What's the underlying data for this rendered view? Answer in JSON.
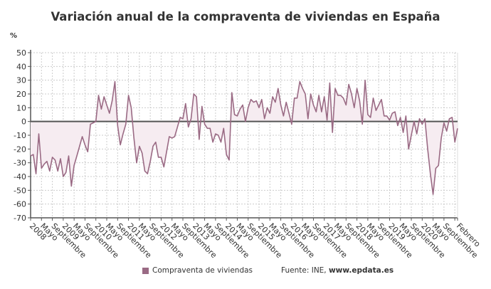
{
  "chart_data": {
    "type": "line",
    "title": "Variación anual de la compraventa de viviendas en España",
    "ylabel": "%",
    "ylim": [
      -70,
      50
    ],
    "yticks": [
      50,
      40,
      30,
      20,
      10,
      0,
      -10,
      -20,
      -30,
      -40,
      -50,
      -60,
      -70
    ],
    "grid": true,
    "legend_placement": "bottom",
    "colors": {
      "line": "#9a6a84",
      "fill": "#f6ecf1",
      "zero_line": "#555555",
      "grid": "#cccccc"
    },
    "x": [
      "2008-01",
      "2008-02",
      "2008-03",
      "2008-04",
      "2008-05",
      "2008-06",
      "2008-07",
      "2008-08",
      "2008-09",
      "2008-10",
      "2008-11",
      "2008-12",
      "2009-01",
      "2009-02",
      "2009-03",
      "2009-04",
      "2009-05",
      "2009-06",
      "2009-07",
      "2009-08",
      "2009-09",
      "2009-10",
      "2009-11",
      "2009-12",
      "2010-01",
      "2010-02",
      "2010-03",
      "2010-04",
      "2010-05",
      "2010-06",
      "2010-07",
      "2010-08",
      "2010-09",
      "2010-10",
      "2010-11",
      "2010-12",
      "2011-01",
      "2011-02",
      "2011-03",
      "2011-04",
      "2011-05",
      "2011-06",
      "2011-07",
      "2011-08",
      "2011-09",
      "2011-10",
      "2011-11",
      "2011-12",
      "2012-01",
      "2012-02",
      "2012-03",
      "2012-04",
      "2012-05",
      "2012-06",
      "2012-07",
      "2012-08",
      "2012-09",
      "2012-10",
      "2012-11",
      "2012-12",
      "2013-01",
      "2013-02",
      "2013-03",
      "2013-04",
      "2013-05",
      "2013-06",
      "2013-07",
      "2013-08",
      "2013-09",
      "2013-10",
      "2013-11",
      "2013-12",
      "2014-01",
      "2014-02",
      "2014-03",
      "2014-04",
      "2014-05",
      "2014-06",
      "2014-07",
      "2014-08",
      "2014-09",
      "2014-10",
      "2014-11",
      "2014-12",
      "2015-01",
      "2015-02",
      "2015-03",
      "2015-04",
      "2015-05",
      "2015-06",
      "2015-07",
      "2015-08",
      "2015-09",
      "2015-10",
      "2015-11",
      "2015-12",
      "2016-01",
      "2016-02",
      "2016-03",
      "2016-04",
      "2016-05",
      "2016-06",
      "2016-07",
      "2016-08",
      "2016-09",
      "2016-10",
      "2016-11",
      "2016-12",
      "2017-01",
      "2017-02",
      "2017-03",
      "2017-04",
      "2017-05",
      "2017-06",
      "2017-07",
      "2017-08",
      "2017-09",
      "2017-10",
      "2017-11",
      "2017-12",
      "2018-01",
      "2018-02",
      "2018-03",
      "2018-04",
      "2018-05",
      "2018-06",
      "2018-07",
      "2018-08",
      "2018-09",
      "2018-10",
      "2018-11",
      "2018-12",
      "2019-01",
      "2019-02",
      "2019-03",
      "2019-04",
      "2019-05",
      "2019-06",
      "2019-07",
      "2019-08",
      "2019-09",
      "2019-10",
      "2019-11",
      "2019-12",
      "2020-01",
      "2020-02",
      "2020-03",
      "2020-04",
      "2020-05",
      "2020-06",
      "2020-07",
      "2020-08",
      "2020-09",
      "2020-10",
      "2020-11",
      "2020-12",
      "2021-01",
      "2021-02"
    ],
    "series": [
      {
        "name": "Compraventa de viviendas",
        "values": [
          -25,
          -24,
          -38,
          -9,
          -34,
          -31,
          -29,
          -36,
          -26,
          -28,
          -36,
          -27,
          -40,
          -37,
          -25,
          -47,
          -32,
          -25,
          -18,
          -11,
          -17,
          -22,
          -2,
          -1,
          0,
          19,
          9,
          18,
          12,
          6,
          15,
          29,
          -3,
          -17,
          -9,
          -2,
          19,
          10,
          -12,
          -30,
          -18,
          -23,
          -36,
          -38,
          -29,
          -18,
          -15,
          -26,
          -26,
          -33,
          -22,
          -11,
          -12,
          -11,
          -4,
          3,
          2,
          13,
          -4,
          2,
          20,
          18,
          -13,
          11,
          -2,
          -5,
          -5,
          -15,
          -9,
          -10,
          -15,
          -5,
          -24,
          -28,
          21,
          5,
          4,
          9,
          12,
          0,
          10,
          16,
          14,
          15,
          10,
          16,
          2,
          10,
          6,
          18,
          14,
          24,
          12,
          4,
          14,
          6,
          -2,
          17,
          17,
          29,
          24,
          20,
          2,
          20,
          12,
          7,
          19,
          7,
          18,
          1,
          28,
          -8,
          24,
          19,
          19,
          17,
          12,
          27,
          20,
          10,
          24,
          15,
          -2,
          30,
          5,
          3,
          17,
          8,
          12,
          16,
          4,
          4,
          1,
          6,
          7,
          -3,
          3,
          -8,
          4,
          -20,
          -10,
          0,
          -9,
          2,
          -2,
          2,
          -20,
          -38,
          -53,
          -34,
          -32,
          -12,
          -1,
          -7,
          2,
          3,
          -15,
          -5
        ]
      }
    ],
    "x_ticks": [
      {
        "date": "2008-01",
        "label": "2008"
      },
      {
        "date": "2008-05",
        "label": "Mayo"
      },
      {
        "date": "2008-09",
        "label": "Septiembre"
      },
      {
        "date": "2009-01",
        "label": "2009"
      },
      {
        "date": "2009-05",
        "label": "Mayo"
      },
      {
        "date": "2009-09",
        "label": "Septiembre"
      },
      {
        "date": "2010-01",
        "label": "2010"
      },
      {
        "date": "2010-05",
        "label": "Mayo"
      },
      {
        "date": "2010-09",
        "label": "Septiembre"
      },
      {
        "date": "2011-01",
        "label": "2011"
      },
      {
        "date": "2011-05",
        "label": "Mayo"
      },
      {
        "date": "2011-09",
        "label": "Septiembre"
      },
      {
        "date": "2012-01",
        "label": "2012"
      },
      {
        "date": "2012-05",
        "label": "Mayo"
      },
      {
        "date": "2012-09",
        "label": "Septiembre"
      },
      {
        "date": "2013-01",
        "label": "2013"
      },
      {
        "date": "2013-05",
        "label": "Mayo"
      },
      {
        "date": "2013-09",
        "label": "Septiembre"
      },
      {
        "date": "2014-01",
        "label": "2014"
      },
      {
        "date": "2014-05",
        "label": "Mayo"
      },
      {
        "date": "2014-09",
        "label": "Septiembre"
      },
      {
        "date": "2015-01",
        "label": "2015"
      },
      {
        "date": "2015-05",
        "label": "Mayo"
      },
      {
        "date": "2015-09",
        "label": "Septiembre"
      },
      {
        "date": "2016-01",
        "label": "2016"
      },
      {
        "date": "2016-05",
        "label": "Mayo"
      },
      {
        "date": "2016-09",
        "label": "Septiembre"
      },
      {
        "date": "2017-01",
        "label": "2017"
      },
      {
        "date": "2017-05",
        "label": "Mayo"
      },
      {
        "date": "2017-09",
        "label": "Septiembre"
      },
      {
        "date": "2018-01",
        "label": "2018"
      },
      {
        "date": "2018-05",
        "label": "Mayo"
      },
      {
        "date": "2018-09",
        "label": "Septiembre"
      },
      {
        "date": "2019-01",
        "label": "2019"
      },
      {
        "date": "2019-05",
        "label": "Mayo"
      },
      {
        "date": "2019-09",
        "label": "Septiembre"
      },
      {
        "date": "2020-01",
        "label": "2020"
      },
      {
        "date": "2020-05",
        "label": "Mayo"
      },
      {
        "date": "2020-09",
        "label": "Septiembre"
      },
      {
        "date": "2021-01",
        "label": ""
      },
      {
        "date": "2021-02",
        "label": "Febrero"
      }
    ]
  },
  "legend": {
    "label": "Compraventa de viviendas"
  },
  "source": {
    "prefix": "Fuente: INE, ",
    "site": "www.epdata.es"
  }
}
